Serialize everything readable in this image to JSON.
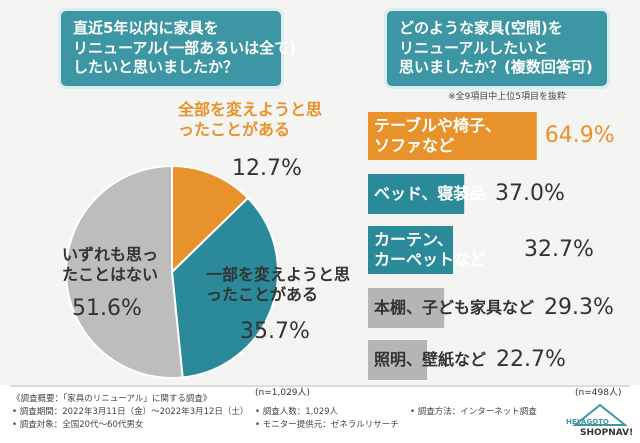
{
  "chart_data": [
    {
      "type": "pie",
      "title": [
        "直近5年以内に家具を",
        "リニューアル(一部あるいは全て)",
        "したいと思いましたか？"
      ],
      "categories": [
        "全部を変えようと思ったことがある",
        "一部を変えようと思ったことがある",
        "いずれも思ったことはない"
      ],
      "values": [
        12.7,
        35.7,
        51.6
      ],
      "value_labels": [
        "12.7%",
        "35.7%",
        "51.6%"
      ],
      "colors": [
        "#e8922c",
        "#2a8a9a",
        "#bdbdbd"
      ],
      "note": "(n=1,029人)"
    },
    {
      "type": "bar",
      "title": [
        "どのような家具(空間)を",
        "リニューアルしたいと",
        "思いましたか？(複数回答可)"
      ],
      "subtitle": "※全9項目中上位5項目を抜粋",
      "categories": [
        "テーブルや椅子、ソファなど",
        "ベッド、寝装品",
        "カーテン、カーペットなど",
        "本棚、子ども家具など",
        "照明、壁紙など"
      ],
      "values": [
        64.9,
        37.0,
        32.7,
        29.3,
        22.7
      ],
      "value_labels": [
        "64.9%",
        "37.0%",
        "32.7%",
        "29.3%",
        "22.7%"
      ],
      "colors": [
        "#e8922c",
        "#2a8a9a",
        "#2a8a9a",
        "#b5b5b5",
        "#b5b5b5"
      ],
      "note": "(n=498人)"
    }
  ],
  "footer": {
    "heading": "《調査概要：「家具のリニューアル」に関する調査》",
    "items": [
      "• 調査期間：2022年3月11日（金）～2022年3月12日（土）",
      "• 調査対象：全国20代～60代男女",
      "• 調査人数：1,029人",
      "• モニター提供元：ゼネラルリサーチ",
      "• 調査方法：インターネット調査"
    ]
  },
  "logo": [
    "HEYAGOTO",
    "SHOPNAV!"
  ]
}
